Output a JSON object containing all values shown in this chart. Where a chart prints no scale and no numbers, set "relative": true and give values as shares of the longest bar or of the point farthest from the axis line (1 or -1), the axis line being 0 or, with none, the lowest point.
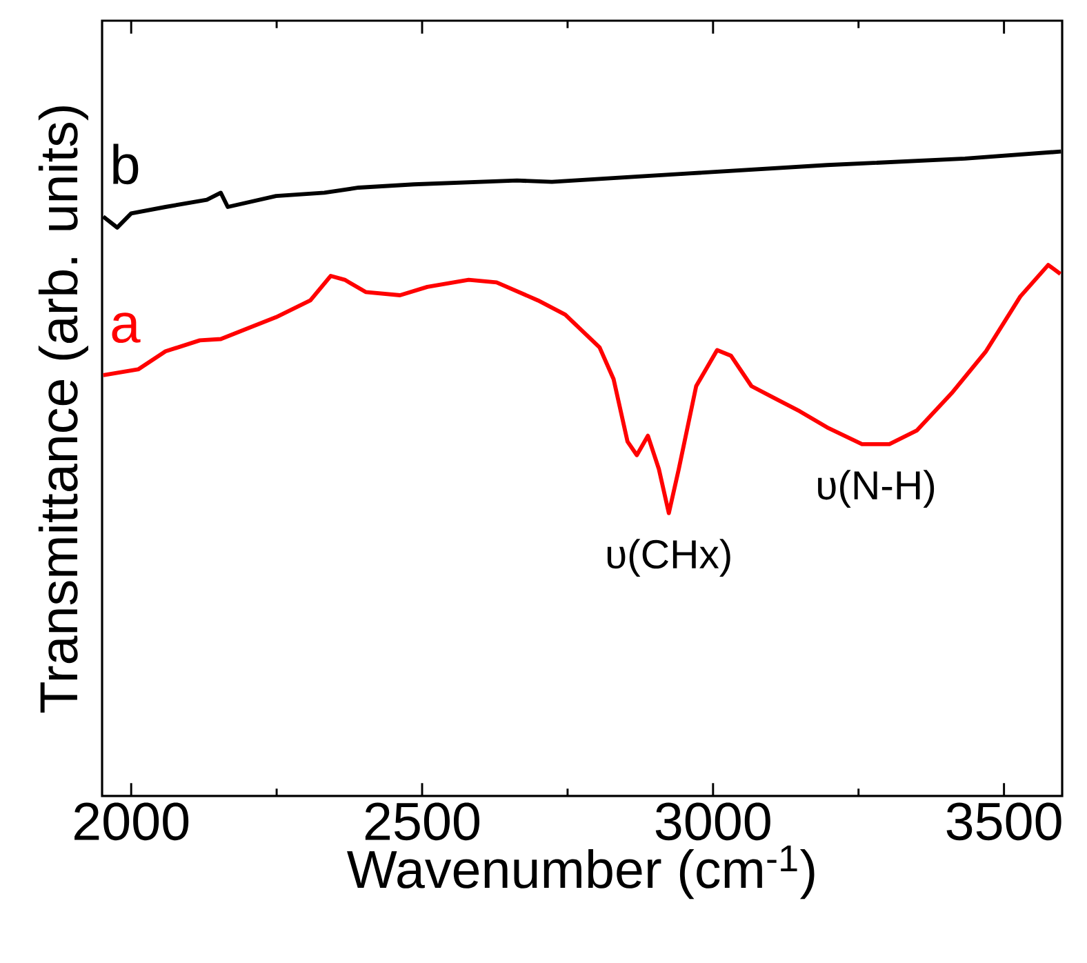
{
  "chart_data": {
    "type": "line",
    "relative": true,
    "xlabel": "Wavenumber (cm$^{-1}$)",
    "ylabel": "Transmittance (arb. units)",
    "xlim": [
      1950,
      3600
    ],
    "xticks": [
      2000,
      2500,
      3000,
      3500
    ],
    "grid": false,
    "marker": "none",
    "line_style": "solid",
    "series": [
      {
        "name": "a",
        "color": "#ff0000",
        "x": [
          1952,
          2012,
          2059,
          2118,
          2154,
          2201,
          2249,
          2308,
          2343,
          2367,
          2403,
          2462,
          2509,
          2580,
          2628,
          2699,
          2746,
          2805,
          2829,
          2853,
          2869,
          2888,
          2907,
          2924,
          2941,
          2971,
          3007,
          3031,
          3066,
          3102,
          3149,
          3196,
          3256,
          3303,
          3350,
          3410,
          3469,
          3528,
          3576,
          3597
        ],
        "values": [
          0.653,
          0.662,
          0.69,
          0.707,
          0.709,
          0.726,
          0.743,
          0.769,
          0.807,
          0.801,
          0.782,
          0.777,
          0.79,
          0.801,
          0.797,
          0.769,
          0.747,
          0.696,
          0.647,
          0.55,
          0.529,
          0.559,
          0.507,
          0.439,
          0.507,
          0.636,
          0.692,
          0.683,
          0.636,
          0.619,
          0.597,
          0.572,
          0.546,
          0.546,
          0.567,
          0.625,
          0.69,
          0.775,
          0.824,
          0.81
        ]
      },
      {
        "name": "b",
        "color": "#000000",
        "x": [
          1952,
          1976,
          2000,
          2059,
          2130,
          2154,
          2166,
          2249,
          2332,
          2391,
          2486,
          2663,
          2723,
          2959,
          3196,
          3433,
          3598
        ],
        "values": [
          0.899,
          0.882,
          0.904,
          0.914,
          0.925,
          0.936,
          0.914,
          0.931,
          0.936,
          0.944,
          0.949,
          0.955,
          0.953,
          0.966,
          0.979,
          0.989,
          1.0
        ]
      }
    ],
    "annotations": [
      {
        "text": "υ(CHx)",
        "x": 2924,
        "y": 0.439
      },
      {
        "text": "υ(N-H)",
        "x": 3280,
        "y": 0.546
      }
    ]
  }
}
